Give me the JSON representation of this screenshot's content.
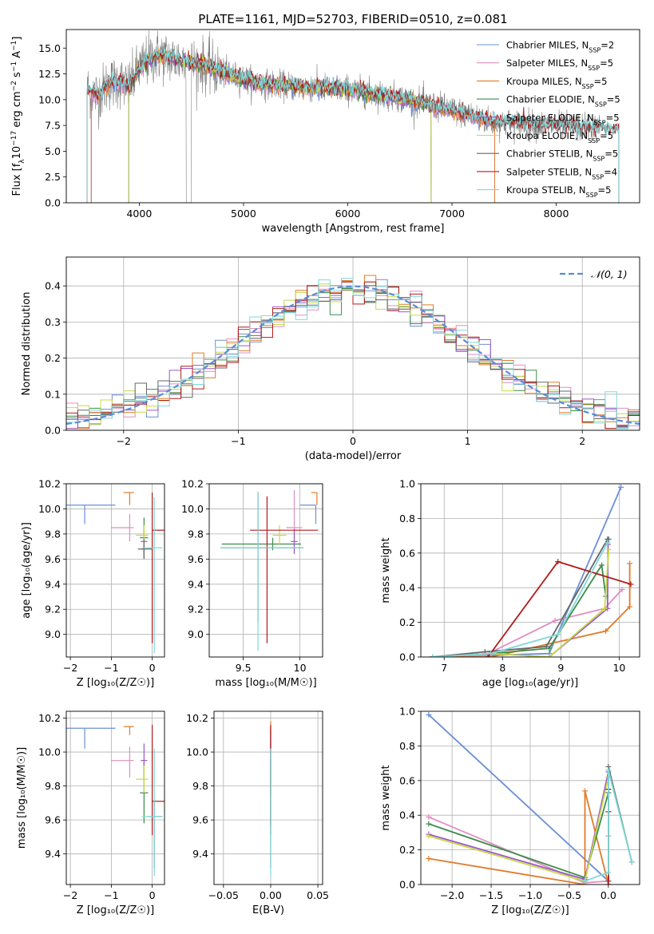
{
  "colors": {
    "Chabrier MILES": "#6b8fd6",
    "Salpeter MILES": "#e08ec0",
    "Kroupa MILES": "#e07b2a",
    "Chabrier ELODIE": "#3d8c4a",
    "Salpeter ELODIE": "#9b59c6",
    "Kroupa ELODIE": "#c8d94a",
    "Chabrier STELIB": "#666666",
    "Salpeter STELIB": "#b01c1c",
    "Kroupa STELIB": "#7dd9d9",
    "gauss": "#5b8bd6"
  },
  "chart_data": [
    {
      "id": "spectrum",
      "type": "line",
      "title": "PLATE=1161, MJD=52703, FIBERID=0510, z=0.081",
      "xlabel": "wavelength [Angstrom, rest frame]",
      "ylabel_parts": [
        "Flux [f",
        "λ",
        "10",
        "−17",
        " erg cm",
        "−2",
        " s",
        "−1",
        " A",
        "−1",
        "]"
      ],
      "xlim": [
        3300,
        8800
      ],
      "ylim": [
        0,
        16.8
      ],
      "xticks": [
        4000,
        5000,
        6000,
        7000,
        8000
      ],
      "yticks": [
        0.0,
        2.5,
        5.0,
        7.5,
        10.0,
        12.5,
        15.0
      ],
      "grid": false,
      "legend_position": "top-right",
      "legend": [
        {
          "name": "Chabrier MILES",
          "nssp": "2"
        },
        {
          "name": "Salpeter MILES",
          "nssp": "5"
        },
        {
          "name": "Kroupa MILES",
          "nssp": "5"
        },
        {
          "name": "Chabrier ELODIE",
          "nssp": "5"
        },
        {
          "name": "Salpeter ELODIE",
          "nssp": "5"
        },
        {
          "name": "Kroupa ELODIE",
          "nssp": "5"
        },
        {
          "name": "Chabrier STELIB",
          "nssp": "5"
        },
        {
          "name": "Salpeter STELIB",
          "nssp": "4"
        },
        {
          "name": "Kroupa STELIB",
          "nssp": "5"
        }
      ],
      "model_continuum": {
        "x": [
          3500,
          3600,
          3700,
          3800,
          3900,
          4000,
          4100,
          4200,
          4300,
          4400,
          4500,
          4600,
          4800,
          5000,
          5200,
          5500,
          6000,
          6500,
          7000,
          7400
        ],
        "y": [
          11.0,
          10.4,
          11.5,
          11.8,
          11.2,
          13.0,
          14.0,
          14.3,
          14.0,
          13.8,
          13.5,
          13.4,
          12.6,
          12.0,
          11.5,
          11.3,
          11.0,
          10.2,
          9.0,
          7.8
        ]
      },
      "model_extent": {
        "MILES": [
          3540,
          7410
        ],
        "ELODIE": [
          3900,
          6800
        ],
        "STELIB": [
          3500,
          8600
        ]
      },
      "observed": {
        "x_range": [
          3500,
          8420
        ],
        "ydip": [
          4450,
          4500
        ]
      }
    },
    {
      "id": "residuals",
      "type": "histogram",
      "xlabel": "(data-model)/error",
      "ylabel": "Normed distribution",
      "xlim": [
        -2.5,
        2.5
      ],
      "ylim": [
        0,
        0.48
      ],
      "xticks": [
        -2,
        -1,
        0,
        1,
        2
      ],
      "yticks": [
        0.0,
        0.1,
        0.2,
        0.3,
        0.4
      ],
      "grid": true,
      "legend_position": "top-right",
      "legend": [
        {
          "name": "𝒩(0, 1)",
          "style": "dashed"
        }
      ],
      "bin_width": 0.1,
      "bin_start": -2.5
    },
    {
      "id": "age_vs_Z",
      "type": "scatter",
      "xlabel": "Z [log₁₀(Z/Z☉)]",
      "ylabel": "age  [log₁₀(age/yr)]",
      "xlim": [
        -2.1,
        0.3
      ],
      "ylim": [
        8.82,
        10.2
      ],
      "xticks": [
        -2,
        -1,
        0
      ],
      "yticks": [
        9.0,
        9.2,
        9.4,
        9.6,
        9.8,
        10.0,
        10.2
      ],
      "grid": true,
      "points": [
        {
          "series": "Chabrier MILES",
          "x": -1.65,
          "y": 10.03,
          "xerr": [
            0.85,
            0.75
          ],
          "yerr": [
            0.15,
            0.0
          ]
        },
        {
          "series": "Salpeter MILES",
          "x": -0.55,
          "y": 9.85,
          "xerr": [
            0.45,
            0.1
          ],
          "yerr": [
            0.11,
            0.11
          ]
        },
        {
          "series": "Kroupa MILES",
          "x": -0.55,
          "y": 10.13,
          "xerr": [
            0.15,
            0.1
          ],
          "yerr": [
            0.1,
            0.0
          ]
        },
        {
          "series": "Chabrier ELODIE",
          "x": -0.2,
          "y": 9.77,
          "xerr": [
            0.1,
            0.1
          ],
          "yerr": [
            0.16,
            0.16
          ]
        },
        {
          "series": "Salpeter ELODIE",
          "x": -0.2,
          "y": 9.74,
          "xerr": [
            0.08,
            0.08
          ],
          "yerr": [
            0.12,
            0.12
          ]
        },
        {
          "series": "Kroupa ELODIE",
          "x": -0.2,
          "y": 9.79,
          "xerr": [
            0.2,
            0.1
          ],
          "yerr": [
            0.08,
            0.08
          ]
        },
        {
          "series": "Chabrier STELIB",
          "x": -0.2,
          "y": 9.68,
          "xerr": [
            0.15,
            0.2
          ],
          "yerr": [
            0.08,
            0.08
          ]
        },
        {
          "series": "Salpeter STELIB",
          "x": 0.0,
          "y": 9.83,
          "xerr": [
            0.0,
            0.3
          ],
          "yerr": [
            0.9,
            0.3
          ]
        },
        {
          "series": "Kroupa STELIB",
          "x": 0.05,
          "y": 9.69,
          "xerr": [
            0.3,
            0.2
          ],
          "yerr": [
            0.84,
            0.4
          ]
        }
      ]
    },
    {
      "id": "age_vs_mass",
      "type": "scatter",
      "xlabel": "mass [log₁₀(M/M☉)]",
      "ylabel": "",
      "xlim": [
        9.2,
        10.2
      ],
      "ylim": [
        8.82,
        10.2
      ],
      "xticks": [
        9.5,
        10.0
      ],
      "yticks": [
        9.0,
        9.2,
        9.4,
        9.6,
        9.8,
        10.0,
        10.2
      ],
      "grid": true,
      "points": [
        {
          "series": "Chabrier MILES",
          "x": 10.14,
          "y": 10.03,
          "xerr": [
            0.14,
            0.0
          ],
          "yerr": [
            0.15,
            0.0
          ]
        },
        {
          "series": "Salpeter MILES",
          "x": 9.95,
          "y": 9.85,
          "xerr": [
            0.07,
            0.07
          ],
          "yerr": [
            0.2,
            0.3
          ]
        },
        {
          "series": "Kroupa MILES",
          "x": 10.15,
          "y": 10.13,
          "xerr": [
            0.05,
            0.0
          ],
          "yerr": [
            0.1,
            0.0
          ]
        },
        {
          "series": "Chabrier ELODIE",
          "x": 9.76,
          "y": 9.72,
          "xerr": [
            0.45,
            0.25
          ],
          "yerr": [
            0.05,
            0.05
          ]
        },
        {
          "series": "Salpeter ELODIE",
          "x": 9.95,
          "y": 9.74,
          "xerr": [
            0.03,
            0.03
          ],
          "yerr": [
            0.1,
            0.1
          ]
        },
        {
          "series": "Kroupa ELODIE",
          "x": 9.82,
          "y": 9.79,
          "xerr": [
            0.06,
            0.06
          ],
          "yerr": [
            0.08,
            0.08
          ]
        },
        {
          "series": "Chabrier STELIB",
          "x": 9.63,
          "y": 9.69,
          "xerr": [
            0.33,
            0.4
          ],
          "yerr": [
            0.6,
            0.44
          ]
        },
        {
          "series": "Salpeter STELIB",
          "x": 9.71,
          "y": 9.83,
          "xerr": [
            0.15,
            0.45
          ],
          "yerr": [
            0.9,
            0.27
          ]
        },
        {
          "series": "Kroupa STELIB",
          "x": 9.63,
          "y": 9.69,
          "xerr": [
            0.33,
            0.4
          ],
          "yerr": [
            0.82,
            0.45
          ]
        }
      ]
    },
    {
      "id": "weight_vs_age",
      "type": "line",
      "xlabel": "age  [log₁₀(age/yr)]",
      "ylabel": "mass weight",
      "xlim": [
        6.6,
        10.35
      ],
      "ylim": [
        0,
        1.0
      ],
      "xticks": [
        7,
        8,
        9,
        10
      ],
      "yticks": [
        0.0,
        0.2,
        0.4,
        0.6,
        0.8,
        1.0
      ],
      "grid": true,
      "series": [
        {
          "name": "Chabrier MILES",
          "x": [
            6.8,
            8.8,
            10.03
          ],
          "y": [
            0.0,
            0.02,
            0.98
          ]
        },
        {
          "name": "Salpeter MILES",
          "x": [
            6.8,
            7.7,
            8.9,
            9.75,
            10.05
          ],
          "y": [
            0.0,
            0.01,
            0.21,
            0.28,
            0.39
          ]
        },
        {
          "name": "Kroupa MILES",
          "x": [
            6.8,
            7.8,
            9.77,
            10.18,
            10.18
          ],
          "y": [
            0.0,
            0.0,
            0.15,
            0.29,
            0.54
          ]
        },
        {
          "name": "Chabrier ELODIE",
          "x": [
            6.8,
            7.8,
            8.8,
            9.7,
            9.77
          ],
          "y": [
            0.0,
            0.02,
            0.05,
            0.53,
            0.35
          ]
        },
        {
          "name": "Salpeter ELODIE",
          "x": [
            6.8,
            7.8,
            8.8,
            9.8,
            9.81
          ],
          "y": [
            0.0,
            0.02,
            0.0,
            0.28,
            0.65
          ]
        },
        {
          "name": "Kroupa ELODIE",
          "x": [
            6.8,
            7.8,
            8.8,
            9.75,
            9.82
          ],
          "y": [
            0.0,
            0.02,
            0.0,
            0.28,
            0.62
          ]
        },
        {
          "name": "Chabrier STELIB",
          "x": [
            6.8,
            7.7,
            8.75,
            9.8,
            9.82
          ],
          "y": [
            0.0,
            0.03,
            0.06,
            0.68,
            0.68
          ]
        },
        {
          "name": "Salpeter STELIB",
          "x": [
            7.75,
            8.95,
            10.2
          ],
          "y": [
            0.0,
            0.55,
            0.42
          ]
        },
        {
          "name": "Kroupa STELIB",
          "x": [
            6.8,
            7.8,
            8.95,
            9.8
          ],
          "y": [
            0.0,
            0.02,
            0.13,
            0.66
          ]
        }
      ]
    },
    {
      "id": "mass_vs_Z",
      "type": "scatter",
      "xlabel": "Z [log₁₀(Z/Z☉)]",
      "ylabel": "mass [log₁₀(M/M☉)]",
      "xlim": [
        -2.1,
        0.3
      ],
      "ylim": [
        9.22,
        10.24
      ],
      "xticks": [
        -2,
        -1,
        0
      ],
      "yticks": [
        9.4,
        9.6,
        9.8,
        10.0,
        10.2
      ],
      "grid": true,
      "points": [
        {
          "series": "Chabrier MILES",
          "x": -1.65,
          "y": 10.14,
          "xerr": [
            0.85,
            0.75
          ],
          "yerr": [
            0.12,
            0.0
          ]
        },
        {
          "series": "Salpeter MILES",
          "x": -0.55,
          "y": 9.95,
          "xerr": [
            0.45,
            0.1
          ],
          "yerr": [
            0.1,
            0.08
          ]
        },
        {
          "series": "Kroupa MILES",
          "x": -0.55,
          "y": 10.15,
          "xerr": [
            0.15,
            0.1
          ],
          "yerr": [
            0.05,
            0.0
          ]
        },
        {
          "series": "Chabrier ELODIE",
          "x": -0.2,
          "y": 9.76,
          "xerr": [
            0.1,
            0.1
          ],
          "yerr": [
            0.18,
            0.18
          ]
        },
        {
          "series": "Salpeter ELODIE",
          "x": -0.2,
          "y": 9.95,
          "xerr": [
            0.08,
            0.08
          ],
          "yerr": [
            0.1,
            0.1
          ]
        },
        {
          "series": "Kroupa ELODIE",
          "x": -0.2,
          "y": 9.84,
          "xerr": [
            0.2,
            0.1
          ],
          "yerr": [
            0.08,
            0.08
          ]
        },
        {
          "series": "Chabrier STELIB",
          "x": 0.05,
          "y": 9.62,
          "xerr": [
            0.15,
            0.2
          ],
          "yerr": [
            0.3,
            0.1
          ]
        },
        {
          "series": "Salpeter STELIB",
          "x": 0.0,
          "y": 9.71,
          "xerr": [
            0.0,
            0.3
          ],
          "yerr": [
            0.2,
            0.45
          ]
        },
        {
          "series": "Kroupa STELIB",
          "x": 0.05,
          "y": 9.62,
          "xerr": [
            0.3,
            0.2
          ],
          "yerr": [
            0.35,
            0.4
          ]
        }
      ]
    },
    {
      "id": "mass_vs_EBV",
      "type": "scatter",
      "xlabel": "E(B-V)",
      "ylabel": "",
      "xlim": [
        -0.06,
        0.055
      ],
      "ylim": [
        9.22,
        10.24
      ],
      "xticks": [
        -0.05,
        0.0,
        0.05
      ],
      "xtick_labels": [
        "−0.05",
        "0.00",
        "0.05"
      ],
      "yticks": [
        9.4,
        9.6,
        9.8,
        10.0,
        10.2
      ],
      "grid": true,
      "points": [
        {
          "series": "Chabrier MILES",
          "x": 0.0,
          "y": 10.14,
          "xerr": [
            0.0,
            0.0
          ],
          "yerr": [
            0.1,
            0.0
          ]
        },
        {
          "series": "Salpeter MILES",
          "x": 0.0,
          "y": 9.95,
          "xerr": [
            0.0,
            0.0
          ],
          "yerr": [
            0.2,
            0.2
          ]
        },
        {
          "series": "Kroupa MILES",
          "x": 0.0,
          "y": 10.15,
          "xerr": [
            0.0,
            0.0
          ],
          "yerr": [
            0.05,
            0.03
          ]
        },
        {
          "series": "Chabrier ELODIE",
          "x": 0.0,
          "y": 9.76,
          "xerr": [
            0.0,
            0.0
          ],
          "yerr": [
            0.2,
            0.2
          ]
        },
        {
          "series": "Salpeter ELODIE",
          "x": 0.0,
          "y": 9.95,
          "xerr": [
            0.0,
            0.0
          ],
          "yerr": [
            0.1,
            0.1
          ]
        },
        {
          "series": "Kroupa ELODIE",
          "x": 0.0,
          "y": 9.84,
          "xerr": [
            0.0,
            0.0
          ],
          "yerr": [
            0.1,
            0.1
          ]
        },
        {
          "series": "Chabrier STELIB",
          "x": 0.0,
          "y": 9.62,
          "xerr": [
            0.0,
            0.0
          ],
          "yerr": [
            0.3,
            0.5
          ]
        },
        {
          "series": "Salpeter STELIB",
          "x": 0.0,
          "y": 9.71,
          "xerr": [
            0.0,
            0.0
          ],
          "yerr": [
            0.2,
            0.45
          ]
        },
        {
          "series": "Kroupa STELIB",
          "x": 0.0,
          "y": 9.62,
          "xerr": [
            0.0,
            0.0
          ],
          "yerr": [
            0.35,
            0.4
          ]
        }
      ]
    },
    {
      "id": "weight_vs_Z",
      "type": "line",
      "xlabel": "Z [log₁₀(Z/Z☉)]",
      "ylabel": "mass weight",
      "xlim": [
        -2.4,
        0.4
      ],
      "ylim": [
        0,
        1.0
      ],
      "xticks": [
        -2.0,
        -1.5,
        -1.0,
        -0.5,
        0.0
      ],
      "xtick_labels": [
        "−2.0",
        "−1.5",
        "−1.0",
        "−0.5",
        "0.0"
      ],
      "yticks": [
        0.0,
        0.2,
        0.4,
        0.6,
        0.8,
        1.0
      ],
      "grid": true,
      "series": [
        {
          "name": "Chabrier MILES",
          "x": [
            -2.3,
            0.0
          ],
          "y": [
            0.98,
            0.02
          ]
        },
        {
          "name": "Salpeter MILES",
          "x": [
            -2.3,
            -0.3,
            0.0,
            0.0
          ],
          "y": [
            0.39,
            0.01,
            0.02,
            0.28
          ]
        },
        {
          "name": "Kroupa MILES",
          "x": [
            -2.3,
            -0.3,
            -0.3,
            0.0
          ],
          "y": [
            0.15,
            0.0,
            0.54,
            0.0
          ]
        },
        {
          "name": "Chabrier ELODIE",
          "x": [
            -2.3,
            -0.3,
            0.0
          ],
          "y": [
            0.35,
            0.04,
            0.53
          ]
        },
        {
          "name": "Salpeter ELODIE",
          "x": [
            -2.3,
            -0.3,
            0.0
          ],
          "y": [
            0.29,
            0.03,
            0.65
          ]
        },
        {
          "name": "Kroupa ELODIE",
          "x": [
            -2.3,
            -0.3,
            0.0
          ],
          "y": [
            0.28,
            0.02,
            0.62
          ]
        },
        {
          "name": "Chabrier STELIB",
          "x": [
            0.0,
            0.0,
            0.0,
            0.3
          ],
          "y": [
            0.02,
            0.55,
            0.68,
            0.13
          ]
        },
        {
          "name": "Salpeter STELIB",
          "x": [
            0.0,
            0.0,
            0.0
          ],
          "y": [
            0.0,
            0.42,
            0.55
          ]
        },
        {
          "name": "Kroupa STELIB",
          "x": [
            -0.3,
            0.0,
            0.0,
            0.3
          ],
          "y": [
            0.02,
            0.07,
            0.66,
            0.13
          ]
        }
      ]
    }
  ]
}
